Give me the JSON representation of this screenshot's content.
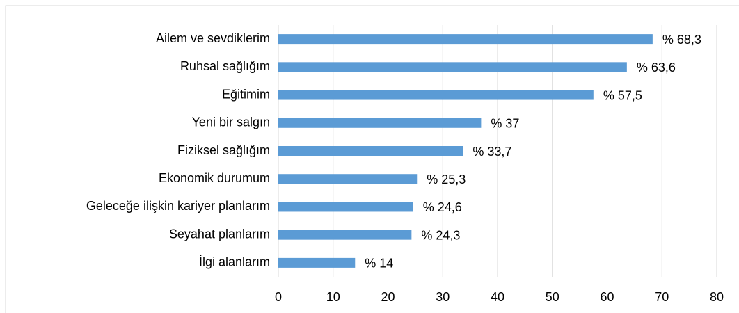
{
  "chart_data": {
    "type": "bar",
    "orientation": "horizontal",
    "categories": [
      "Ailem ve sevdiklerim",
      "Ruhsal sağlığım",
      "Eğitimim",
      "Yeni bir salgın",
      "Fiziksel sağlığım",
      "Ekonomik durumum",
      "Geleceğe ilişkin kariyer planlarım",
      "Seyahat planlarım",
      "İlgi alanlarım"
    ],
    "values": [
      68.3,
      63.6,
      57.5,
      37,
      33.7,
      25.3,
      24.6,
      24.3,
      14
    ],
    "value_labels": [
      "% 68,3",
      "% 63,6",
      "% 57,5",
      "% 37",
      "% 33,7",
      "% 25,3",
      "% 24,6",
      "% 24,3",
      "% 14"
    ],
    "color": "#5b9bd5",
    "xlim": [
      0,
      80
    ],
    "xticks": [
      0,
      10,
      20,
      30,
      40,
      50,
      60,
      70,
      80
    ],
    "grid": true
  }
}
